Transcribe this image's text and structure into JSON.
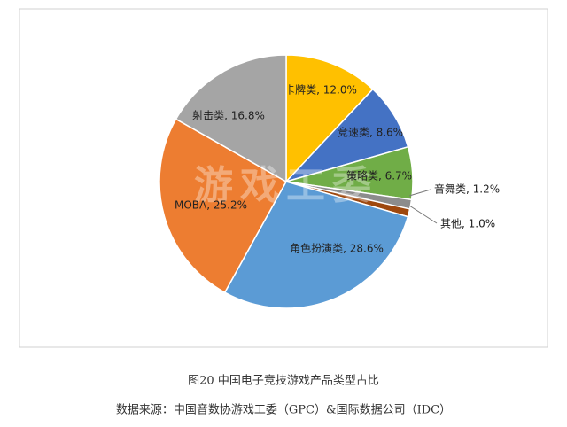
{
  "chart_data": {
    "type": "pie",
    "values": [
      12.0,
      8.6,
      6.7,
      1.2,
      1.0,
      28.6,
      25.2,
      16.8
    ],
    "value_labels": [
      "卡牌类, 12.0%",
      "竞速类, 8.6%",
      "策略类, 6.7%",
      "音舞类, 1.2%",
      "其他, 1.0%",
      "角色扮演类, 28.6%",
      "MOBA, 25.2%",
      "射击类, 16.8%"
    ],
    "colors": [
      "#ffc000",
      "#4472c4",
      "#70ad47",
      "#8c8c8c",
      "#9e480e",
      "#5b9bd5",
      "#ed7d31",
      "#a5a5a5"
    ],
    "watermark": "游戏工委",
    "caption": "图20  中国电子竞技游戏产品类型占比",
    "source": "数据来源：中国音数协游戏工委（GPC）&国际数据公司（IDC）"
  }
}
